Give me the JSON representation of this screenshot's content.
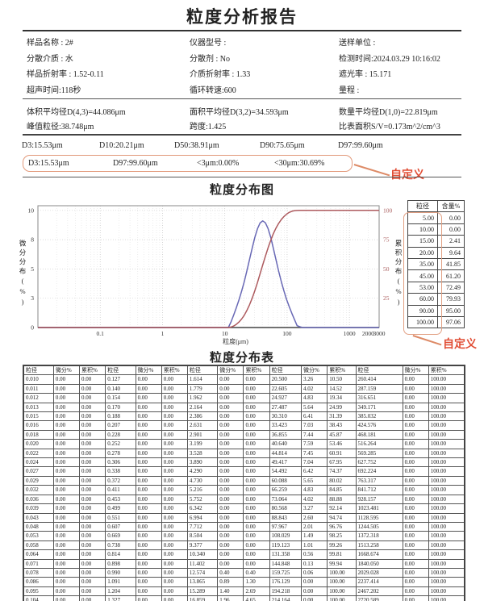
{
  "title": "粒度分析报告",
  "colors": {
    "annotation_red": "#e14e35",
    "highlight_border": "#e2997a",
    "curve_blue": "#6868b5",
    "curve_red": "#ad5a5e"
  },
  "info": {
    "items": [
      "样品名称 : 2#",
      "仪器型号 :",
      "送样单位 :",
      "分散介质 : 水",
      "分散剂 : No",
      "检测时间:2024.03.29 10:16:02",
      "样品折射率 : 1.52-0.11",
      "介质折射率 : 1.33",
      "遮光率 : 15.171",
      "超声时间:118秒",
      "循环转速:600",
      "量程 :"
    ]
  },
  "stats": {
    "items": [
      "体积平均径D(4,3)=44.086μm",
      "面积平均径D(3,2)=34.593μm",
      "数量平均径D(1,0)=22.819μm",
      "峰值粒径:38.748μm",
      "跨度:1.425",
      "比表面积S/V=0.173m^2/cm^3"
    ]
  },
  "percentiles": {
    "items": [
      "D3:15.53μm",
      "D10:20.21μm",
      "D50:38.91μm",
      "D90:75.65μm",
      "D97:99.60μm"
    ]
  },
  "custom_row": {
    "items": [
      "D3:15.53μm",
      "D97:99.60μm",
      "<3μm:0.00%",
      "<30μm:30.69%"
    ],
    "annotation": "自定义"
  },
  "chart_section": {
    "title": "粒度分布图",
    "annotation": "自定义",
    "side_table": {
      "headers": [
        "粒径",
        "含量%"
      ],
      "rows": [
        [
          "5.00",
          "0.00"
        ],
        [
          "10.00",
          "0.00"
        ],
        [
          "15.00",
          "2.41"
        ],
        [
          "20.00",
          "9.64"
        ],
        [
          "35.00",
          "41.85"
        ],
        [
          "45.00",
          "61.20"
        ],
        [
          "53.00",
          "72.49"
        ],
        [
          "60.00",
          "79.93"
        ],
        [
          "90.00",
          "95.00"
        ],
        [
          "100.00",
          "97.06"
        ]
      ]
    }
  },
  "chart_data": {
    "type": "line",
    "title": "粒度分布图",
    "xlabel": "粒度(μm)",
    "ylabel_left": "微分分布(%)",
    "ylabel_right": "累积分布(%)",
    "x_scale": "log",
    "xlim": [
      0.01,
      3000
    ],
    "ylim_left": [
      0,
      10
    ],
    "ylim_right": [
      0,
      100
    ],
    "grid": true,
    "x_ticks": [
      "0.1",
      "1",
      "10",
      "100",
      "1000",
      "2000",
      "3000"
    ],
    "y_ticks_left": [
      {
        "label": "0",
        "value": 0
      },
      {
        "label": "3",
        "value": 2.5
      },
      {
        "label": "5",
        "value": 5
      },
      {
        "label": "8",
        "value": 7.5
      },
      {
        "label": "10",
        "value": 10
      }
    ],
    "y_ticks_right": [
      {
        "label": "25",
        "value": 25
      },
      {
        "label": "50",
        "value": 50
      },
      {
        "label": "75",
        "value": 75
      },
      {
        "label": "100",
        "value": 100
      }
    ],
    "right_axis_color": "#a85a5a",
    "series": [
      {
        "name": "微分分布",
        "axis": "left",
        "color": "#6868b5",
        "points": [
          [
            0.01,
            0
          ],
          [
            10.34,
            0
          ],
          [
            11.402,
            0
          ],
          [
            12.574,
            0.4
          ],
          [
            13.865,
            0.89
          ],
          [
            15.289,
            1.4
          ],
          [
            16.859,
            1.96
          ],
          [
            18.59,
            2.58
          ],
          [
            20.5,
            3.26
          ],
          [
            22.605,
            4.02
          ],
          [
            24.927,
            4.83
          ],
          [
            27.487,
            5.64
          ],
          [
            30.31,
            6.41
          ],
          [
            33.423,
            7.03
          ],
          [
            36.855,
            7.44
          ],
          [
            40.64,
            7.59
          ],
          [
            44.814,
            7.45
          ],
          [
            49.417,
            7.04
          ],
          [
            54.492,
            6.42
          ],
          [
            60.088,
            5.65
          ],
          [
            66.259,
            4.83
          ],
          [
            73.064,
            4.02
          ],
          [
            80.568,
            3.27
          ],
          [
            88.843,
            2.6
          ],
          [
            97.967,
            2.01
          ],
          [
            108.029,
            1.49
          ],
          [
            119.123,
            1.01
          ],
          [
            131.358,
            0.56
          ],
          [
            144.848,
            0.13
          ],
          [
            159.725,
            0.06
          ],
          [
            176.129,
            0
          ],
          [
            3000,
            0
          ]
        ]
      },
      {
        "name": "累积分布",
        "axis": "right",
        "color": "#ad5a5e",
        "points": [
          [
            0.01,
            0
          ],
          [
            10.34,
            0
          ],
          [
            11.402,
            0
          ],
          [
            12.574,
            0.4
          ],
          [
            13.865,
            1.3
          ],
          [
            15.289,
            2.69
          ],
          [
            16.859,
            4.65
          ],
          [
            18.59,
            7.23
          ],
          [
            20.5,
            10.5
          ],
          [
            22.605,
            14.52
          ],
          [
            24.927,
            19.34
          ],
          [
            27.487,
            24.99
          ],
          [
            30.31,
            31.39
          ],
          [
            33.423,
            38.43
          ],
          [
            36.855,
            45.87
          ],
          [
            40.64,
            53.46
          ],
          [
            44.814,
            60.91
          ],
          [
            49.417,
            67.95
          ],
          [
            54.492,
            74.37
          ],
          [
            60.088,
            80.02
          ],
          [
            66.259,
            84.85
          ],
          [
            73.064,
            88.88
          ],
          [
            80.568,
            92.14
          ],
          [
            88.843,
            94.74
          ],
          [
            97.967,
            96.76
          ],
          [
            108.029,
            98.25
          ],
          [
            119.123,
            99.26
          ],
          [
            131.358,
            99.81
          ],
          [
            144.848,
            99.94
          ],
          [
            159.725,
            100
          ],
          [
            3000,
            100
          ]
        ]
      }
    ]
  },
  "dist_table": {
    "title": "粒度分布表",
    "headers": [
      "粒径",
      "微分%",
      "累积%",
      "粒径",
      "微分%",
      "累积%",
      "粒径",
      "微分%",
      "累积%",
      "粒径",
      "微分%",
      "累积%",
      "粒径",
      "微分%",
      "累积%"
    ],
    "rows": [
      [
        "0.010",
        "0.00",
        "0.00",
        "0.127",
        "0.00",
        "0.00",
        "1.614",
        "0.00",
        "0.00",
        "20.500",
        "3.26",
        "10.50",
        "260.414",
        "0.00",
        "100.00"
      ],
      [
        "0.011",
        "0.00",
        "0.00",
        "0.140",
        "0.00",
        "0.00",
        "1.779",
        "0.00",
        "0.00",
        "22.605",
        "4.02",
        "14.52",
        "287.159",
        "0.00",
        "100.00"
      ],
      [
        "0.012",
        "0.00",
        "0.00",
        "0.154",
        "0.00",
        "0.00",
        "1.962",
        "0.00",
        "0.00",
        "24.927",
        "4.83",
        "19.34",
        "316.651",
        "0.00",
        "100.00"
      ],
      [
        "0.013",
        "0.00",
        "0.00",
        "0.170",
        "0.00",
        "0.00",
        "2.164",
        "0.00",
        "0.00",
        "27.487",
        "5.64",
        "24.99",
        "349.171",
        "0.00",
        "100.00"
      ],
      [
        "0.015",
        "0.00",
        "0.00",
        "0.188",
        "0.00",
        "0.00",
        "2.386",
        "0.00",
        "0.00",
        "30.310",
        "6.41",
        "31.39",
        "385.032",
        "0.00",
        "100.00"
      ],
      [
        "0.016",
        "0.00",
        "0.00",
        "0.207",
        "0.00",
        "0.00",
        "2.631",
        "0.00",
        "0.00",
        "33.423",
        "7.03",
        "38.43",
        "424.576",
        "0.00",
        "100.00"
      ],
      [
        "0.018",
        "0.00",
        "0.00",
        "0.228",
        "0.00",
        "0.00",
        "2.901",
        "0.00",
        "0.00",
        "36.855",
        "7.44",
        "45.87",
        "468.181",
        "0.00",
        "100.00"
      ],
      [
        "0.020",
        "0.00",
        "0.00",
        "0.252",
        "0.00",
        "0.00",
        "3.199",
        "0.00",
        "0.00",
        "40.640",
        "7.59",
        "53.46",
        "516.264",
        "0.00",
        "100.00"
      ],
      [
        "0.022",
        "0.00",
        "0.00",
        "0.278",
        "0.00",
        "0.00",
        "3.528",
        "0.00",
        "0.00",
        "44.814",
        "7.45",
        "60.91",
        "569.285",
        "0.00",
        "100.00"
      ],
      [
        "0.024",
        "0.00",
        "0.00",
        "0.306",
        "0.00",
        "0.00",
        "3.890",
        "0.00",
        "0.00",
        "49.417",
        "7.04",
        "67.95",
        "627.752",
        "0.00",
        "100.00"
      ],
      [
        "0.027",
        "0.00",
        "0.00",
        "0.338",
        "0.00",
        "0.00",
        "4.290",
        "0.00",
        "0.00",
        "54.492",
        "6.42",
        "74.37",
        "692.224",
        "0.00",
        "100.00"
      ],
      [
        "0.029",
        "0.00",
        "0.00",
        "0.372",
        "0.00",
        "0.00",
        "4.730",
        "0.00",
        "0.00",
        "60.088",
        "5.65",
        "80.02",
        "763.317",
        "0.00",
        "100.00"
      ],
      [
        "0.032",
        "0.00",
        "0.00",
        "0.411",
        "0.00",
        "0.00",
        "5.216",
        "0.00",
        "0.00",
        "66.259",
        "4.83",
        "84.85",
        "841.712",
        "0.00",
        "100.00"
      ],
      [
        "0.036",
        "0.00",
        "0.00",
        "0.453",
        "0.00",
        "0.00",
        "5.752",
        "0.00",
        "0.00",
        "73.064",
        "4.02",
        "88.88",
        "928.157",
        "0.00",
        "100.00"
      ],
      [
        "0.039",
        "0.00",
        "0.00",
        "0.499",
        "0.00",
        "0.00",
        "6.342",
        "0.00",
        "0.00",
        "80.568",
        "3.27",
        "92.14",
        "1023.481",
        "0.00",
        "100.00"
      ],
      [
        "0.043",
        "0.00",
        "0.00",
        "0.551",
        "0.00",
        "0.00",
        "6.994",
        "0.00",
        "0.00",
        "88.843",
        "2.60",
        "94.74",
        "1128.595",
        "0.00",
        "100.00"
      ],
      [
        "0.048",
        "0.00",
        "0.00",
        "0.607",
        "0.00",
        "0.00",
        "7.712",
        "0.00",
        "0.00",
        "97.967",
        "2.01",
        "96.76",
        "1244.505",
        "0.00",
        "100.00"
      ],
      [
        "0.053",
        "0.00",
        "0.00",
        "0.669",
        "0.00",
        "0.00",
        "8.504",
        "0.00",
        "0.00",
        "108.029",
        "1.49",
        "98.25",
        "1372.318",
        "0.00",
        "100.00"
      ],
      [
        "0.058",
        "0.00",
        "0.00",
        "0.738",
        "0.00",
        "0.00",
        "9.377",
        "0.00",
        "0.00",
        "119.123",
        "1.01",
        "99.26",
        "1513.258",
        "0.00",
        "100.00"
      ],
      [
        "0.064",
        "0.00",
        "0.00",
        "0.814",
        "0.00",
        "0.00",
        "10.340",
        "0.00",
        "0.00",
        "131.358",
        "0.56",
        "99.81",
        "1668.674",
        "0.00",
        "100.00"
      ],
      [
        "0.071",
        "0.00",
        "0.00",
        "0.898",
        "0.00",
        "0.00",
        "11.402",
        "0.00",
        "0.00",
        "144.848",
        "0.13",
        "99.94",
        "1840.050",
        "0.00",
        "100.00"
      ],
      [
        "0.078",
        "0.00",
        "0.00",
        "0.990",
        "0.00",
        "0.00",
        "12.574",
        "0.40",
        "0.40",
        "159.725",
        "0.06",
        "100.00",
        "2029.028",
        "0.00",
        "100.00"
      ],
      [
        "0.086",
        "0.00",
        "0.00",
        "1.091",
        "0.00",
        "0.00",
        "13.865",
        "0.89",
        "1.30",
        "176.129",
        "0.00",
        "100.00",
        "2237.414",
        "0.00",
        "100.00"
      ],
      [
        "0.095",
        "0.00",
        "0.00",
        "1.204",
        "0.00",
        "0.00",
        "15.289",
        "1.40",
        "2.69",
        "194.218",
        "0.00",
        "100.00",
        "2467.202",
        "0.00",
        "100.00"
      ],
      [
        "0.104",
        "0.00",
        "0.00",
        "1.327",
        "0.00",
        "0.00",
        "16.859",
        "1.96",
        "4.65",
        "214.164",
        "0.00",
        "100.00",
        "2720.589",
        "0.00",
        "100.00"
      ],
      [
        "0.115",
        "0.00",
        "0.00",
        "1.463",
        "0.00",
        "0.00",
        "18.590",
        "2.58",
        "7.23",
        "236.159",
        "0.00",
        "100.00",
        "3000.000",
        "0.00",
        "100.00"
      ]
    ]
  }
}
